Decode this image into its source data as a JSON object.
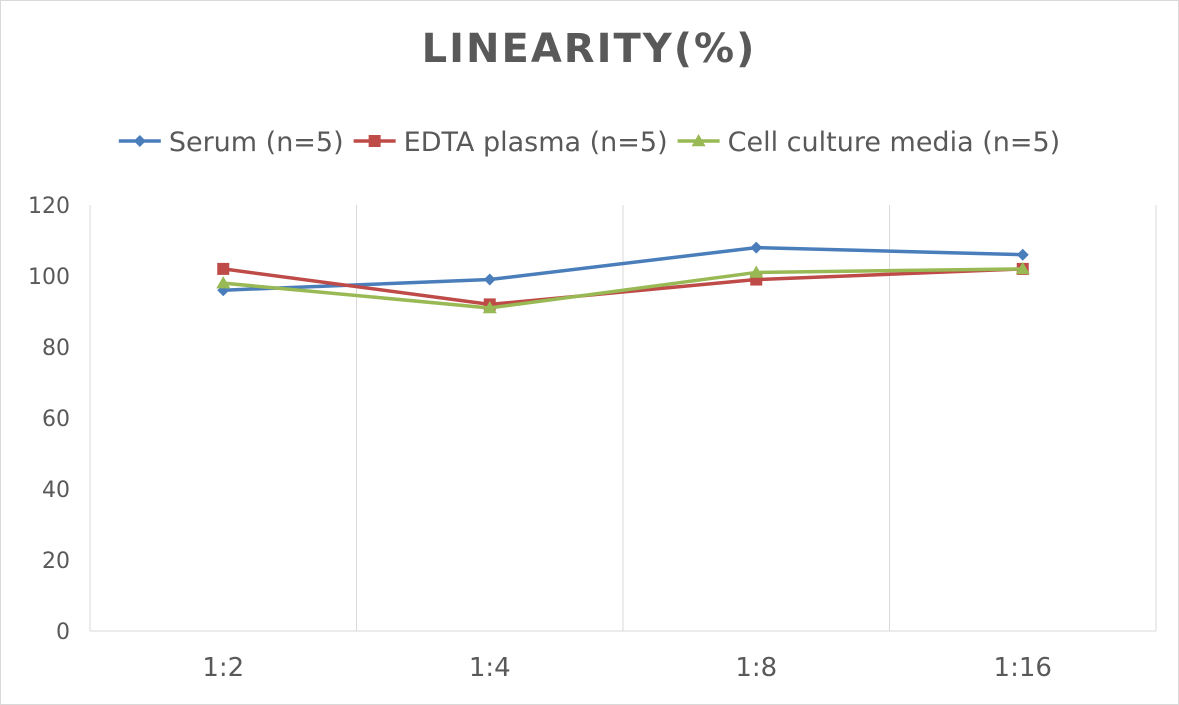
{
  "chart_data": {
    "type": "line",
    "title": "LINEARITY(%)",
    "categories": [
      "1:2",
      "1:4",
      "1:8",
      "1:16"
    ],
    "series": [
      {
        "name": "Serum (n=5)",
        "values": [
          96,
          99,
          108,
          106
        ],
        "color": "#4a7ebb",
        "marker": "diamond"
      },
      {
        "name": "EDTA plasma (n=5)",
        "values": [
          102,
          92,
          99,
          102
        ],
        "color": "#be4b48",
        "marker": "square"
      },
      {
        "name": "Cell culture media (n=5)",
        "values": [
          98,
          91,
          101,
          102
        ],
        "color": "#98b954",
        "marker": "triangle"
      }
    ],
    "y_ticks": [
      "0",
      "20",
      "40",
      "60",
      "80",
      "100",
      "120"
    ],
    "ylim": [
      0,
      120
    ],
    "grid": "vertical",
    "legend": "top"
  }
}
